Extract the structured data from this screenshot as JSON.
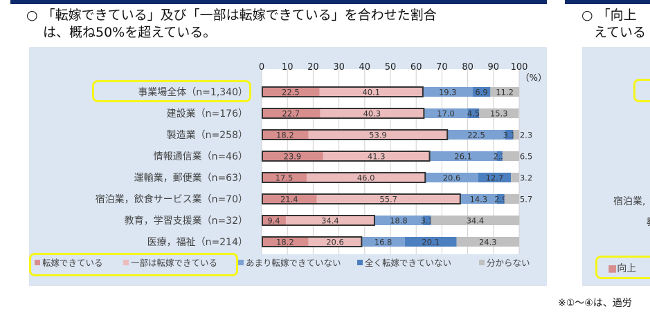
{
  "left": {
    "title_line1": "○ 「転嫁できている」及び「一部は転嫁できている」を合わせた割合",
    "title_line2": "は、概ね50%を超えている。"
  },
  "right": {
    "title_line1": "○ 「向上",
    "title_line2": "えている",
    "cut_label1": "宿泊業,",
    "cut_label2": "教",
    "legend_cut": "向上",
    "note": "※①～④は、過労"
  },
  "colors": {
    "s1": "#d98e8e",
    "s2": "#ecbcbc",
    "s3": "#7ba2d3",
    "s4": "#4c7fbf",
    "s5": "#c0c0c0",
    "highlight": "#f5f51a"
  },
  "chart_data": {
    "type": "bar",
    "orientation": "horizontal",
    "stacked": true,
    "xlim": [
      0,
      100
    ],
    "xticks": [
      0,
      10,
      20,
      30,
      40,
      50,
      60,
      70,
      80,
      90,
      100
    ],
    "unit": "（%）",
    "grid": true,
    "legend_position": "bottom",
    "categories": [
      "事業場全体（n=1,340）",
      "建設業（n=176）",
      "製造業（n=258）",
      "情報通信業（n=46）",
      "運輸業，郵便業（n=63）",
      "宿泊業，飲食サービス業（n=70）",
      "教育，学習支援業（n=32）",
      "医療，福祉（n=214）"
    ],
    "series": [
      {
        "name": "転嫁できている",
        "values": [
          22.5,
          22.7,
          18.2,
          23.9,
          17.5,
          21.4,
          9.4,
          18.2
        ]
      },
      {
        "name": "一部は転嫁できている",
        "values": [
          40.1,
          40.3,
          53.9,
          41.3,
          46.0,
          55.7,
          34.4,
          20.6
        ]
      },
      {
        "name": "あまり転嫁できていない",
        "values": [
          19.3,
          17.0,
          22.5,
          26.1,
          20.6,
          14.3,
          18.8,
          16.8
        ]
      },
      {
        "name": "全く転嫁できていない",
        "values": [
          6.9,
          4.5,
          3.1,
          2.2,
          12.7,
          2.9,
          3.1,
          20.1
        ]
      },
      {
        "name": "分からない",
        "values": [
          11.2,
          15.3,
          2.3,
          6.5,
          3.2,
          5.7,
          34.4,
          24.3
        ]
      }
    ]
  }
}
